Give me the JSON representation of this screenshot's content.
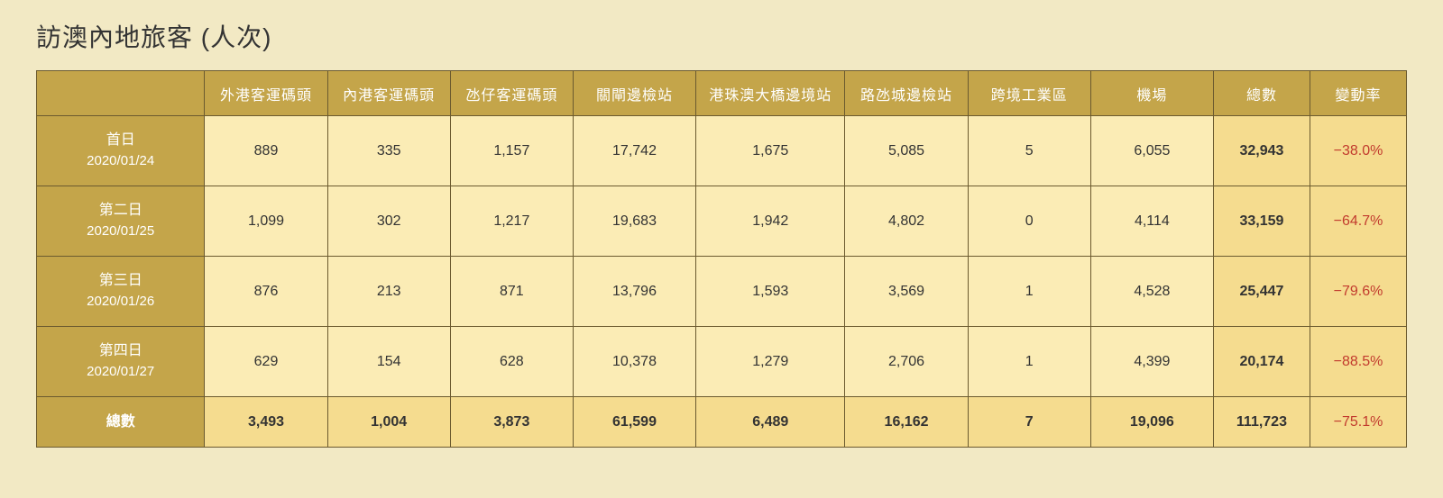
{
  "title": "訪澳內地旅客 (人次)",
  "table": {
    "type": "table",
    "background_color": "#f2e9c4",
    "header_bg": "#c4a54a",
    "header_text_color": "#ffffff",
    "cell_bg": "#fbecb5",
    "highlight_bg": "#f5dc8f",
    "border_color": "#6b5a2f",
    "change_text_color": "#c23b2e",
    "title_fontsize": 28,
    "cell_fontsize": 16,
    "columns": [
      "",
      "外港客運碼頭",
      "內港客運碼頭",
      "氹仔客運碼頭",
      "關閘邊檢站",
      "港珠澳大橋邊境站",
      "路氹城邊檢站",
      "跨境工業區",
      "機場",
      "總數",
      "變動率"
    ],
    "rows": [
      {
        "day_label": "首日",
        "day_date": "2020/01/24",
        "cells": [
          "889",
          "335",
          "1,157",
          "17,742",
          "1,675",
          "5,085",
          "5",
          "6,055"
        ],
        "total": "32,943",
        "change": "−38.0%"
      },
      {
        "day_label": "第二日",
        "day_date": "2020/01/25",
        "cells": [
          "1,099",
          "302",
          "1,217",
          "19,683",
          "1,942",
          "4,802",
          "0",
          "4,114"
        ],
        "total": "33,159",
        "change": "−64.7%"
      },
      {
        "day_label": "第三日",
        "day_date": "2020/01/26",
        "cells": [
          "876",
          "213",
          "871",
          "13,796",
          "1,593",
          "3,569",
          "1",
          "4,528"
        ],
        "total": "25,447",
        "change": "−79.6%"
      },
      {
        "day_label": "第四日",
        "day_date": "2020/01/27",
        "cells": [
          "629",
          "154",
          "628",
          "10,378",
          "1,279",
          "2,706",
          "1",
          "4,399"
        ],
        "total": "20,174",
        "change": "−88.5%"
      }
    ],
    "totals": {
      "label": "總數",
      "cells": [
        "3,493",
        "1,004",
        "3,873",
        "61,599",
        "6,489",
        "16,162",
        "7",
        "19,096"
      ],
      "total": "111,723",
      "change": "−75.1%"
    }
  }
}
